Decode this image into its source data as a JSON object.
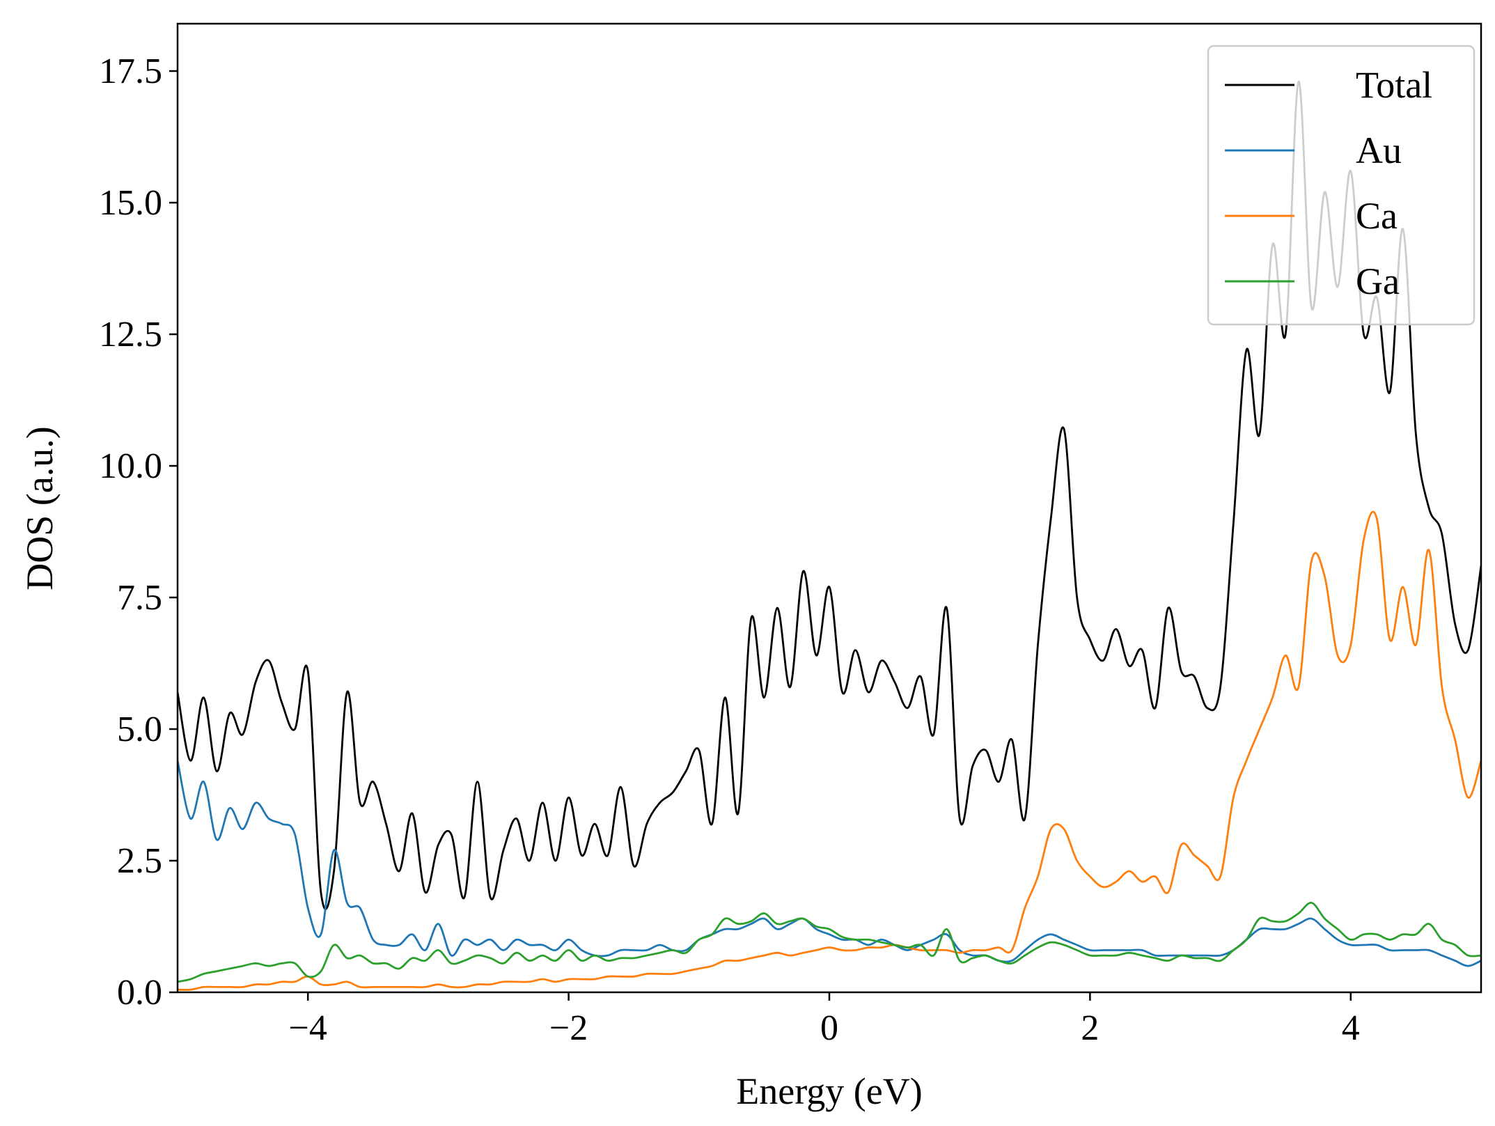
{
  "chart_data": {
    "type": "line",
    "title": "",
    "xlabel": "Energy (eV)",
    "ylabel": "DOS (a.u.)",
    "xlim": [
      -5,
      5
    ],
    "ylim": [
      0,
      18.4
    ],
    "xticks": [
      -4,
      -2,
      0,
      2,
      4
    ],
    "xtick_labels": [
      "−4",
      "−2",
      "0",
      "2",
      "4"
    ],
    "yticks": [
      0,
      2.5,
      5,
      7.5,
      10,
      12.5,
      15,
      17.5
    ],
    "ytick_labels": [
      "0.0",
      "2.5",
      "5.0",
      "7.5",
      "10.0",
      "12.5",
      "15.0",
      "17.5"
    ],
    "grid": false,
    "legend_position": "top-right",
    "x": [
      -5.0,
      -4.9,
      -4.8,
      -4.7,
      -4.6,
      -4.5,
      -4.4,
      -4.3,
      -4.2,
      -4.1,
      -4.0,
      -3.9,
      -3.8,
      -3.7,
      -3.6,
      -3.5,
      -3.4,
      -3.3,
      -3.2,
      -3.1,
      -3.0,
      -2.9,
      -2.8,
      -2.7,
      -2.6,
      -2.5,
      -2.4,
      -2.3,
      -2.2,
      -2.1,
      -2.0,
      -1.9,
      -1.8,
      -1.7,
      -1.6,
      -1.5,
      -1.4,
      -1.3,
      -1.2,
      -1.1,
      -1.0,
      -0.9,
      -0.8,
      -0.7,
      -0.6,
      -0.5,
      -0.4,
      -0.3,
      -0.2,
      -0.1,
      0.0,
      0.1,
      0.2,
      0.3,
      0.4,
      0.5,
      0.6,
      0.7,
      0.8,
      0.9,
      1.0,
      1.1,
      1.2,
      1.3,
      1.4,
      1.5,
      1.6,
      1.7,
      1.8,
      1.9,
      2.0,
      2.1,
      2.2,
      2.3,
      2.4,
      2.5,
      2.6,
      2.7,
      2.8,
      2.9,
      3.0,
      3.1,
      3.2,
      3.3,
      3.4,
      3.5,
      3.6,
      3.7,
      3.8,
      3.9,
      4.0,
      4.1,
      4.2,
      4.3,
      4.4,
      4.5,
      4.6,
      4.7,
      4.8,
      4.9,
      5.0
    ],
    "series": [
      {
        "name": "Total",
        "color": "#000000",
        "values": [
          5.7,
          4.4,
          5.6,
          4.2,
          5.3,
          4.9,
          5.9,
          6.3,
          5.5,
          5.0,
          6.1,
          1.9,
          2.3,
          5.7,
          3.6,
          4.0,
          3.2,
          2.3,
          3.4,
          1.9,
          2.8,
          3.0,
          1.8,
          4.0,
          1.8,
          2.7,
          3.3,
          2.5,
          3.6,
          2.5,
          3.7,
          2.6,
          3.2,
          2.6,
          3.9,
          2.4,
          3.2,
          3.6,
          3.8,
          4.2,
          4.6,
          3.2,
          5.6,
          3.4,
          7.1,
          5.6,
          7.3,
          5.8,
          8.0,
          6.4,
          7.7,
          5.7,
          6.5,
          5.7,
          6.3,
          5.9,
          5.4,
          6.0,
          4.9,
          7.3,
          3.3,
          4.3,
          4.6,
          4.0,
          4.8,
          3.3,
          6.6,
          9.0,
          10.7,
          7.5,
          6.7,
          6.3,
          6.9,
          6.2,
          6.5,
          5.4,
          7.3,
          6.1,
          6.0,
          5.4,
          5.8,
          8.9,
          12.2,
          10.6,
          14.2,
          12.5,
          17.3,
          13.0,
          15.2,
          13.4,
          15.6,
          12.5,
          13.2,
          11.4,
          14.5,
          10.6,
          9.2,
          8.7,
          7.0,
          6.5,
          8.1
        ]
      },
      {
        "name": "Au",
        "color": "#1f77b4",
        "values": [
          4.4,
          3.3,
          4.0,
          2.9,
          3.5,
          3.1,
          3.6,
          3.3,
          3.2,
          3.0,
          1.6,
          1.1,
          2.7,
          1.7,
          1.6,
          1.0,
          0.9,
          0.9,
          1.1,
          0.8,
          1.3,
          0.7,
          1.0,
          0.9,
          1.0,
          0.8,
          1.0,
          0.9,
          0.9,
          0.8,
          1.0,
          0.8,
          0.7,
          0.7,
          0.8,
          0.8,
          0.8,
          0.9,
          0.8,
          0.8,
          1.0,
          1.1,
          1.2,
          1.2,
          1.3,
          1.4,
          1.2,
          1.3,
          1.4,
          1.2,
          1.1,
          1.0,
          1.0,
          0.9,
          1.0,
          0.9,
          0.8,
          0.9,
          1.0,
          1.1,
          0.8,
          0.7,
          0.7,
          0.6,
          0.6,
          0.8,
          1.0,
          1.1,
          1.0,
          0.9,
          0.8,
          0.8,
          0.8,
          0.8,
          0.8,
          0.7,
          0.7,
          0.7,
          0.7,
          0.7,
          0.7,
          0.8,
          1.0,
          1.2,
          1.2,
          1.2,
          1.3,
          1.4,
          1.2,
          1.0,
          0.9,
          0.9,
          0.9,
          0.8,
          0.8,
          0.8,
          0.8,
          0.7,
          0.6,
          0.5,
          0.6
        ]
      },
      {
        "name": "Ca",
        "color": "#ff7f0e",
        "values": [
          0.05,
          0.05,
          0.1,
          0.1,
          0.1,
          0.1,
          0.15,
          0.15,
          0.2,
          0.2,
          0.3,
          0.15,
          0.15,
          0.2,
          0.1,
          0.1,
          0.1,
          0.1,
          0.1,
          0.1,
          0.15,
          0.1,
          0.1,
          0.15,
          0.15,
          0.2,
          0.2,
          0.2,
          0.25,
          0.2,
          0.25,
          0.25,
          0.25,
          0.3,
          0.3,
          0.3,
          0.35,
          0.35,
          0.35,
          0.4,
          0.45,
          0.5,
          0.6,
          0.6,
          0.65,
          0.7,
          0.75,
          0.7,
          0.75,
          0.8,
          0.85,
          0.8,
          0.8,
          0.85,
          0.85,
          0.9,
          0.85,
          0.8,
          0.8,
          0.8,
          0.75,
          0.8,
          0.8,
          0.85,
          0.8,
          1.6,
          2.2,
          3.1,
          3.1,
          2.5,
          2.2,
          2.0,
          2.1,
          2.3,
          2.1,
          2.2,
          1.9,
          2.8,
          2.6,
          2.4,
          2.2,
          3.7,
          4.4,
          5.0,
          5.6,
          6.4,
          5.8,
          8.2,
          7.9,
          6.4,
          6.6,
          8.6,
          9.0,
          6.7,
          7.7,
          6.6,
          8.4,
          5.8,
          4.8,
          3.7,
          4.4
        ]
      },
      {
        "name": "Ga",
        "color": "#2ca02c",
        "values": [
          0.2,
          0.25,
          0.35,
          0.4,
          0.45,
          0.5,
          0.55,
          0.5,
          0.55,
          0.55,
          0.3,
          0.4,
          0.9,
          0.65,
          0.7,
          0.55,
          0.55,
          0.45,
          0.65,
          0.6,
          0.8,
          0.55,
          0.6,
          0.7,
          0.65,
          0.55,
          0.75,
          0.6,
          0.7,
          0.6,
          0.8,
          0.6,
          0.7,
          0.6,
          0.65,
          0.65,
          0.7,
          0.75,
          0.8,
          0.75,
          1.0,
          1.1,
          1.4,
          1.3,
          1.35,
          1.5,
          1.3,
          1.35,
          1.4,
          1.25,
          1.2,
          1.05,
          1.0,
          1.0,
          0.95,
          0.9,
          0.85,
          0.9,
          0.7,
          1.2,
          0.6,
          0.65,
          0.7,
          0.6,
          0.55,
          0.7,
          0.85,
          0.95,
          0.9,
          0.8,
          0.7,
          0.7,
          0.7,
          0.75,
          0.7,
          0.65,
          0.6,
          0.7,
          0.65,
          0.65,
          0.6,
          0.8,
          1.0,
          1.4,
          1.35,
          1.35,
          1.5,
          1.7,
          1.4,
          1.2,
          1.0,
          1.1,
          1.1,
          1.0,
          1.1,
          1.1,
          1.3,
          1.0,
          0.9,
          0.7,
          0.7
        ]
      }
    ]
  }
}
